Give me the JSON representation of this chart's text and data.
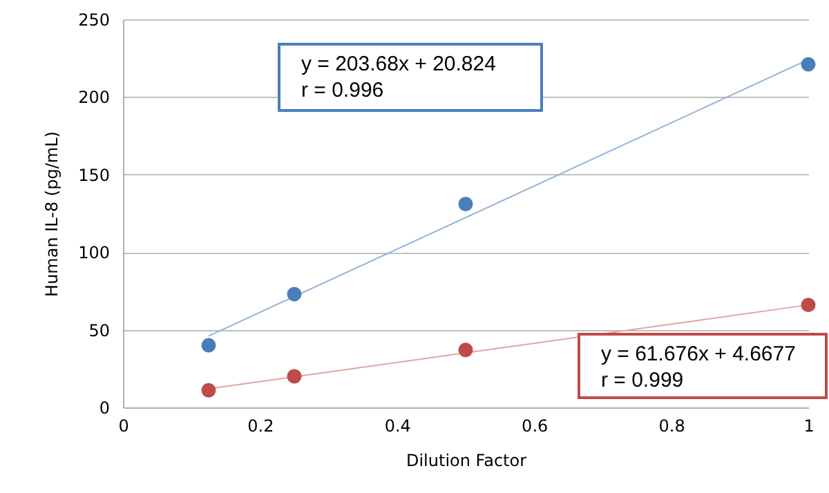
{
  "chart_data": {
    "type": "scatter",
    "xlabel": "Dilution Factor",
    "ylabel": "Human IL-8 (pg/mL)",
    "xlim": [
      0,
      1
    ],
    "xticks": [
      0,
      0.2,
      0.4,
      0.6,
      0.8,
      1
    ],
    "ylim": [
      0,
      250
    ],
    "yticks": [
      0,
      50,
      100,
      150,
      200,
      250
    ],
    "grid": "y",
    "series": [
      {
        "color": "#4a7ebb",
        "x": [
          0.125,
          0.25,
          0.5,
          1
        ],
        "values": [
          40,
          73,
          131,
          221
        ]
      },
      {
        "color": "#be4b48",
        "x": [
          0.125,
          0.25,
          0.5,
          1
        ],
        "values": [
          11,
          20,
          37,
          66
        ]
      },
      {
        "type": "line",
        "color": "#95b3d7",
        "x": [
          0.125,
          1
        ],
        "values": [
          46,
          224
        ]
      },
      {
        "type": "line",
        "color": "#e6a3a2",
        "x": [
          0.125,
          1
        ],
        "values": [
          12,
          66
        ]
      }
    ],
    "annotations": [
      "y = 203.68x + 20.824\nr = 0.996",
      "y = 61.676x + 4.6677\nr = 0.999"
    ]
  }
}
